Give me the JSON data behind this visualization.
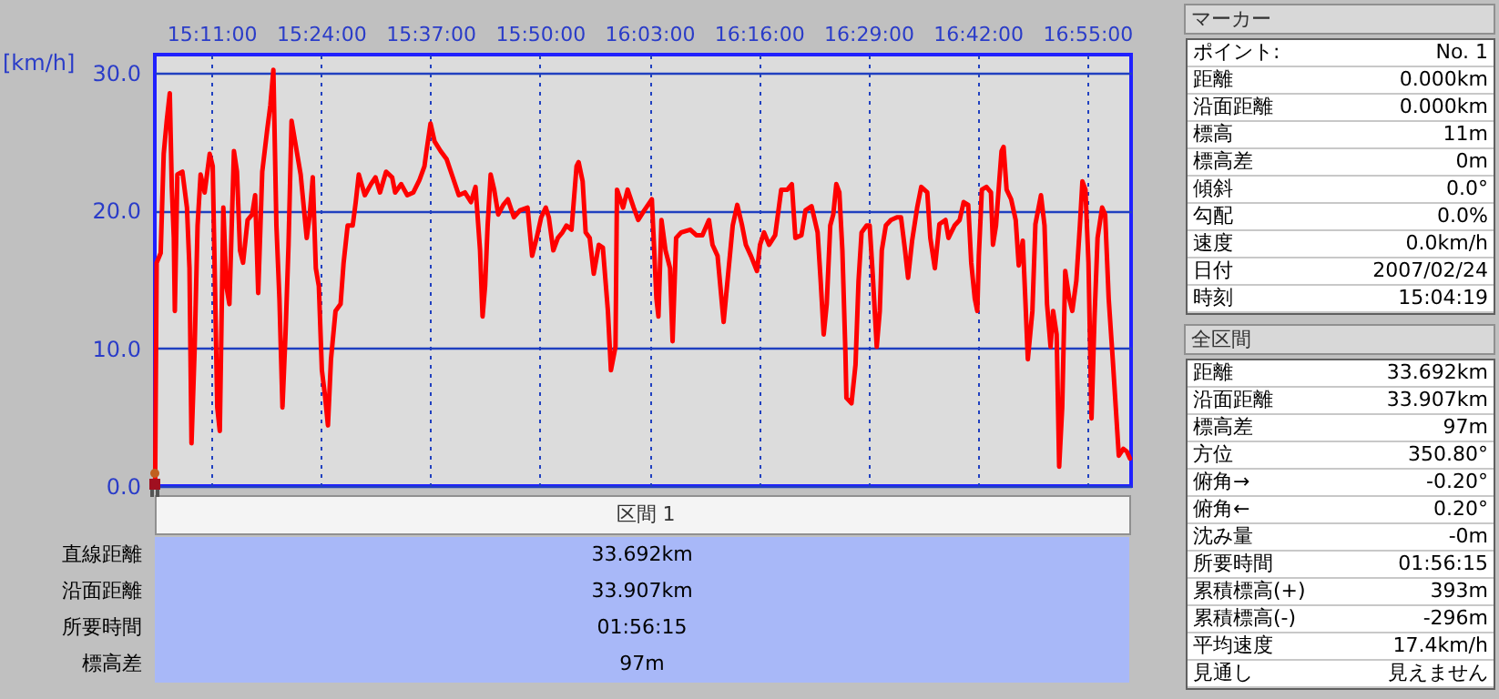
{
  "chart_data": {
    "type": "line",
    "ylabel": "[km/h]",
    "xlim": [
      15.0714,
      17.0033
    ],
    "xticks": [
      {
        "value": 15.18333,
        "label": "15:11:00"
      },
      {
        "value": 15.4,
        "label": "15:24:00"
      },
      {
        "value": 15.61667,
        "label": "15:37:00"
      },
      {
        "value": 15.83333,
        "label": "15:50:00"
      },
      {
        "value": 16.05,
        "label": "16:03:00"
      },
      {
        "value": 16.26667,
        "label": "16:16:00"
      },
      {
        "value": 16.48333,
        "label": "16:29:00"
      },
      {
        "value": 16.7,
        "label": "16:42:00"
      },
      {
        "value": 16.91667,
        "label": "16:55:00"
      }
    ],
    "ylim": [
      0,
      31.3
    ],
    "yticks": [
      {
        "value": 0,
        "label": "0.0"
      },
      {
        "value": 10,
        "label": "10.0"
      },
      {
        "value": 20,
        "label": "20.0"
      },
      {
        "value": 30,
        "label": "30.0"
      }
    ],
    "grid": true,
    "marker": "none",
    "line_style": "solid",
    "series": [
      {
        "color": "#ff0000",
        "x": [
          15.072,
          15.075,
          15.083,
          15.089,
          15.095,
          15.101,
          15.105,
          15.109,
          15.111,
          15.116,
          15.126,
          15.135,
          15.14,
          15.144,
          15.15,
          15.156,
          15.162,
          15.17,
          15.18,
          15.186,
          15.195,
          15.2,
          15.207,
          15.213,
          15.219,
          15.228,
          15.234,
          15.24,
          15.246,
          15.255,
          15.264,
          15.27,
          15.276,
          15.284,
          15.294,
          15.3,
          15.306,
          15.312,
          15.318,
          15.324,
          15.33,
          15.336,
          15.342,
          15.348,
          15.36,
          15.372,
          15.378,
          15.384,
          15.39,
          15.396,
          15.402,
          15.408,
          15.414,
          15.42,
          15.429,
          15.439,
          15.445,
          15.453,
          15.463,
          15.469,
          15.475,
          15.487,
          15.499,
          15.508,
          15.517,
          15.529,
          15.541,
          15.547,
          15.559,
          15.571,
          15.583,
          15.595,
          15.605,
          15.609,
          15.617,
          15.625,
          15.637,
          15.649,
          15.661,
          15.673,
          15.685,
          15.697,
          15.706,
          15.715,
          15.72,
          15.725,
          15.73,
          15.736,
          15.743,
          15.751,
          15.761,
          15.77,
          15.782,
          15.794,
          15.809,
          15.818,
          15.827,
          15.836,
          15.845,
          15.851,
          15.86,
          15.869,
          15.878,
          15.886,
          15.896,
          15.906,
          15.91,
          15.918,
          15.924,
          15.932,
          15.94,
          15.95,
          15.958,
          15.968,
          15.974,
          15.983,
          15.986,
          15.998,
          16.007,
          16.019,
          16.028,
          16.04,
          16.055,
          16.064,
          16.068,
          16.074,
          16.082,
          16.091,
          16.096,
          16.103,
          16.113,
          16.131,
          16.143,
          16.155,
          16.168,
          16.175,
          16.185,
          16.197,
          16.206,
          16.215,
          16.224,
          16.233,
          16.241,
          16.251,
          16.263,
          16.269,
          16.277,
          16.287,
          16.299,
          16.311,
          16.323,
          16.332,
          16.339,
          16.351,
          16.359,
          16.371,
          16.383,
          16.389,
          16.395,
          16.401,
          16.408,
          16.414,
          16.42,
          16.426,
          16.432,
          16.438,
          16.44,
          16.45,
          16.458,
          16.464,
          16.47,
          16.48,
          16.486,
          16.492,
          16.5,
          16.506,
          16.51,
          16.518,
          16.528,
          16.54,
          16.548,
          16.556,
          16.562,
          16.57,
          16.58,
          16.588,
          16.6,
          16.606,
          16.615,
          16.624,
          16.636,
          16.642,
          16.654,
          16.664,
          16.672,
          16.681,
          16.687,
          16.694,
          16.699,
          16.702,
          16.708,
          16.717,
          16.726,
          16.73,
          16.736,
          16.742,
          16.747,
          16.751,
          16.757,
          16.766,
          16.775,
          16.781,
          16.789,
          16.794,
          16.799,
          16.808,
          16.814,
          16.825,
          16.832,
          16.837,
          16.844,
          16.849,
          16.856,
          16.861,
          16.867,
          16.873,
          16.881,
          16.887,
          16.895,
          16.902,
          16.907,
          16.913,
          16.919,
          16.925,
          16.931,
          16.937,
          16.946,
          16.952,
          16.959,
          16.967,
          16.973,
          16.979,
          16.988,
          16.995,
          17.001
        ],
        "values": [
          0,
          16.2,
          16.9,
          24.1,
          26.5,
          28.5,
          21.7,
          18,
          12.7,
          22.6,
          22.8,
          20.2,
          15.8,
          3.1,
          9.7,
          18.9,
          22.6,
          21.3,
          24.1,
          23.2,
          5.7,
          4.0,
          20.2,
          14.5,
          13.2,
          24.3,
          22.8,
          17.1,
          16.2,
          19.3,
          19.7,
          21.1,
          14.0,
          22.8,
          25.9,
          27.6,
          30.2,
          18.9,
          13.6,
          5.7,
          11.0,
          17.5,
          26.5,
          25.2,
          22.6,
          18,
          19.7,
          22.4,
          15.8,
          14.5,
          8.4,
          6.6,
          4.4,
          9.2,
          12.7,
          13.2,
          16.2,
          18.9,
          18.9,
          20.6,
          22.6,
          21.1,
          21.9,
          22.4,
          21.3,
          22.8,
          22.4,
          21.3,
          21.9,
          21.1,
          21.3,
          22.2,
          23.2,
          24.3,
          26.3,
          25.0,
          24.3,
          23.7,
          22.4,
          21.1,
          21.3,
          20.6,
          21.7,
          17.1,
          12.3,
          14.5,
          18.9,
          22.6,
          21.5,
          19.7,
          20.4,
          20.8,
          19.5,
          20.0,
          20.2,
          16.7,
          18.0,
          19.5,
          20.2,
          19.5,
          17.1,
          18.0,
          18.4,
          18.9,
          18.6,
          23.2,
          23.5,
          22.1,
          18.4,
          18.0,
          15.4,
          17.5,
          17.3,
          12.7,
          8.4,
          10.1,
          21.5,
          20.2,
          21.5,
          20.2,
          19.3,
          20.0,
          20.8,
          13.6,
          12.3,
          19.3,
          17.1,
          15.8,
          10.5,
          18.0,
          18.4,
          18.6,
          18.2,
          18.2,
          19.3,
          17.5,
          16.7,
          11.9,
          15.4,
          18.9,
          20.4,
          19.0,
          17.5,
          16.7,
          15.6,
          17.5,
          18.4,
          17.5,
          18.2,
          21.5,
          21.5,
          21.9,
          18.0,
          18.2,
          20.0,
          20.3,
          18.4,
          14.9,
          11.0,
          13.2,
          18.9,
          19.7,
          21.9,
          21.3,
          17.1,
          9.7,
          6.4,
          6.0,
          8.8,
          14.9,
          18.4,
          18.9,
          18.9,
          15.4,
          10.1,
          12.7,
          17.1,
          18.9,
          19.3,
          19.5,
          19.5,
          17.1,
          15.1,
          17.8,
          20.2,
          21.7,
          21.3,
          18.0,
          15.8,
          19.0,
          19.3,
          18.0,
          18.9,
          19.3,
          20.6,
          20.4,
          16.2,
          13.6,
          12.7,
          16.7,
          21.5,
          21.7,
          21.3,
          17.5,
          18.9,
          21.9,
          24.3,
          24.6,
          21.5,
          20.8,
          19.3,
          16.0,
          17.8,
          13.6,
          9.2,
          12.7,
          19.0,
          21.1,
          18.9,
          13.2,
          10.1,
          12.7,
          11.0,
          1.4,
          5.7,
          15.6,
          13.6,
          12.7,
          14.9,
          18.9,
          22.1,
          21.5,
          16.2,
          4.9,
          12.3,
          18.0,
          20.2,
          19.7,
          13.6,
          9.2,
          5.7,
          2.2,
          2.7,
          2.5,
          2.0
        ]
      }
    ],
    "annotations": [
      "マーカー",
      "ポイント:",
      "No. 1",
      "距離",
      "0.000km",
      "沿面距離",
      "0.000km",
      "標高",
      "11m",
      "標高差",
      "0m",
      "傾斜",
      "0.0°",
      "勾配",
      "0.0%",
      "速度",
      "0.0km/h",
      "日付",
      "2007/02/24",
      "時刻",
      "15:04:19",
      "全区間",
      "距離",
      "33.692km",
      "沿面距離",
      "33.907km",
      "標高差",
      "97m",
      "方位",
      "350.80°",
      "俯角→",
      "-0.20°",
      "俯角←",
      "0.20°",
      "沈み量",
      "-0m",
      "所要時間",
      "01:56:15",
      "累積標高(+)",
      "393m",
      "累積標高(-)",
      "-296m",
      "平均速度",
      "17.4km/h",
      "見通し",
      "見えません",
      "区間 1",
      "直線距離",
      "33.692km",
      "沿面距離",
      "33.907km",
      "所要時間",
      "01:56:15",
      "標高差",
      "97m"
    ]
  }
}
